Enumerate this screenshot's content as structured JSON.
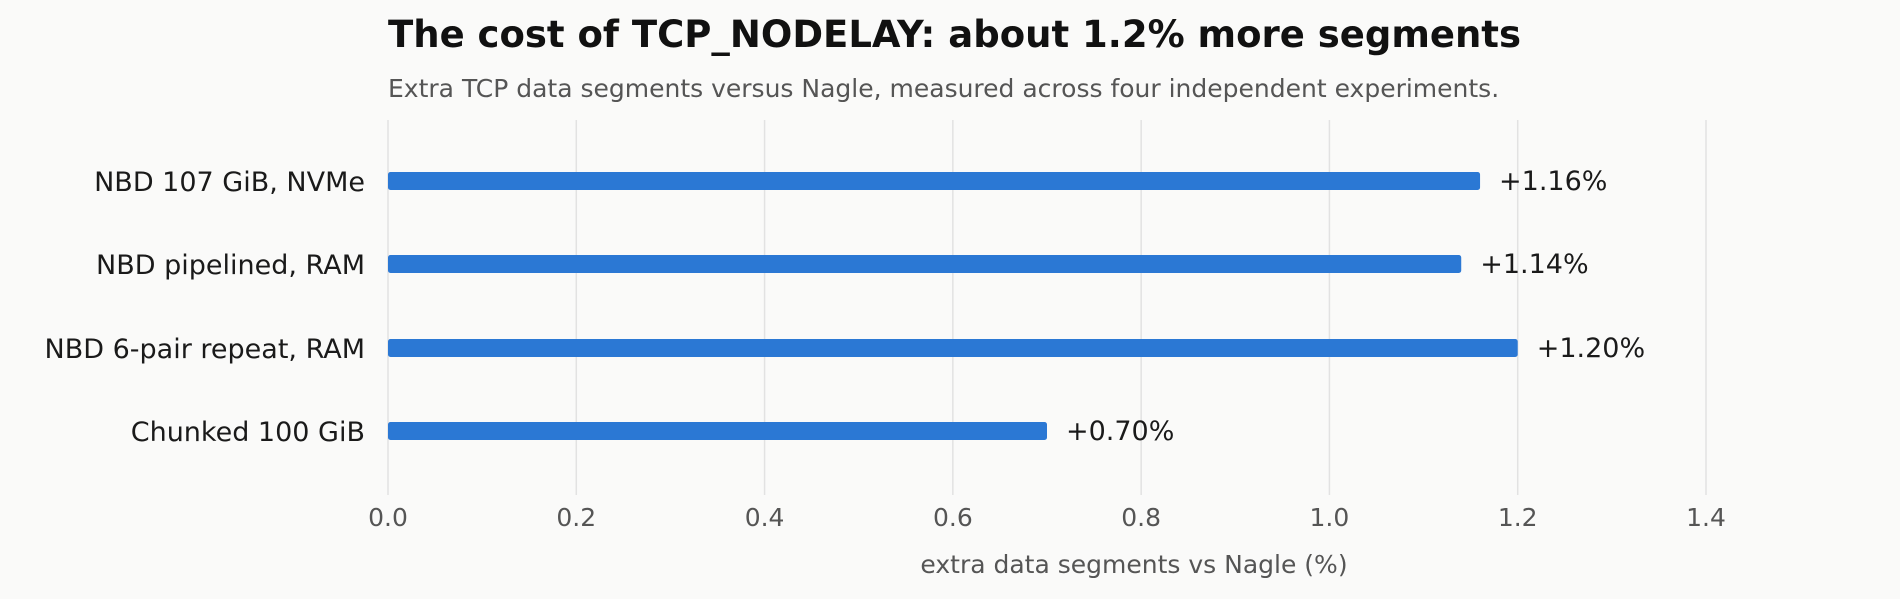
{
  "chart_data": {
    "type": "bar",
    "orientation": "horizontal",
    "title": "The cost of TCP_NODELAY: about 1.2% more segments",
    "subtitle": "Extra TCP data segments versus Nagle, measured across four independent experiments.",
    "xlabel": "extra data segments vs Nagle (%)",
    "ylabel": "",
    "categories": [
      "NBD 107 GiB, NVMe",
      "NBD pipelined, RAM",
      "NBD 6-pair repeat, RAM",
      "Chunked 100 GiB"
    ],
    "values": [
      1.16,
      1.14,
      1.2,
      0.7
    ],
    "value_labels": [
      "+1.16%",
      "+1.14%",
      "+1.20%",
      "+0.70%"
    ],
    "xlim": [
      0,
      1.4
    ],
    "xticks": [
      "0.0",
      "0.2",
      "0.4",
      "0.6",
      "0.8",
      "1.0",
      "1.2",
      "1.4"
    ],
    "grid": "vertical",
    "bar_color": "#2b78d4"
  }
}
